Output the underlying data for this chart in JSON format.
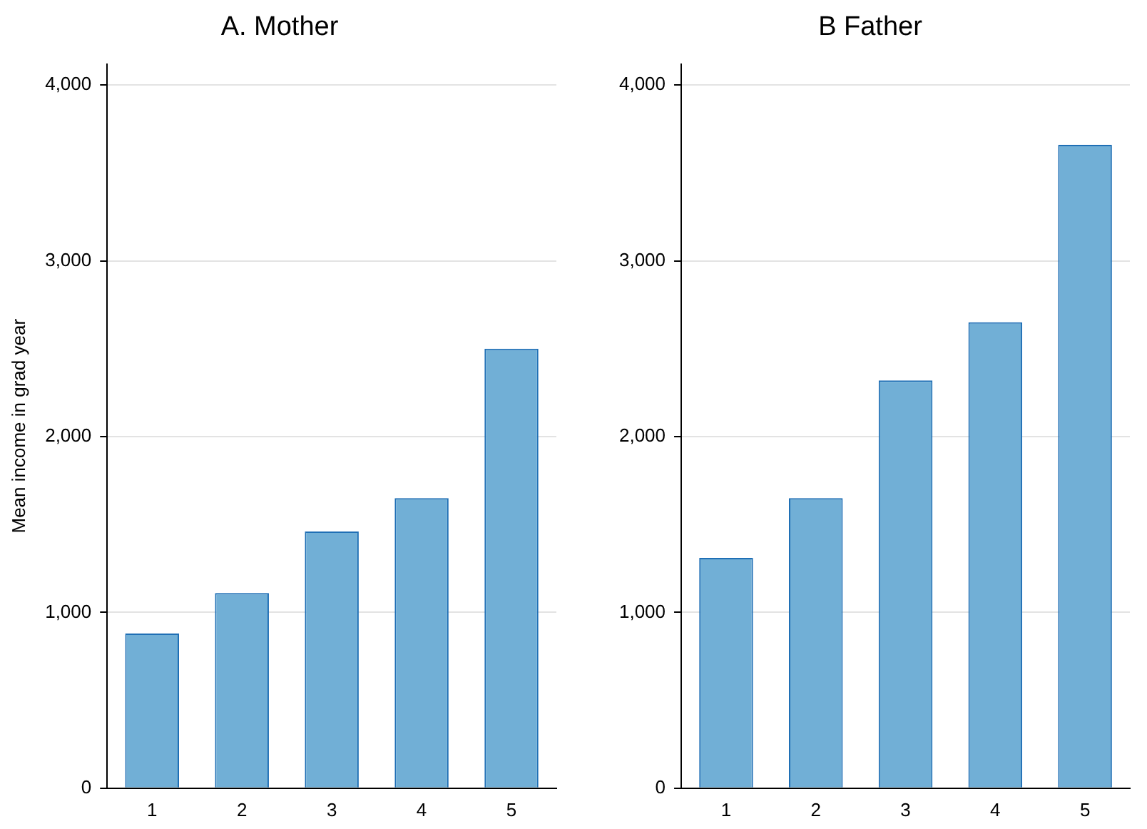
{
  "chart_data": [
    {
      "type": "bar",
      "title": "A. Mother",
      "ylabel": "Mean income in grad year",
      "categories": [
        "1",
        "2",
        "3",
        "4",
        "5"
      ],
      "values": [
        880,
        1110,
        1460,
        1650,
        2500
      ],
      "color": "#71afd6",
      "ylim": [
        0,
        4120
      ],
      "yticks": [
        {
          "value": 0,
          "label": "0"
        },
        {
          "value": 1000,
          "label": "1,000"
        },
        {
          "value": 2000,
          "label": "2,000"
        },
        {
          "value": 3000,
          "label": "3,000"
        },
        {
          "value": 4000,
          "label": "4,000"
        }
      ],
      "grid": "y",
      "legend": false
    },
    {
      "type": "bar",
      "title": "B Father",
      "categories": [
        "1",
        "2",
        "3",
        "4",
        "5"
      ],
      "values": [
        1310,
        1650,
        2320,
        2650,
        3660
      ],
      "color": "#71afd6",
      "ylim": [
        0,
        4120
      ],
      "yticks": [
        {
          "value": 0,
          "label": "0"
        },
        {
          "value": 1000,
          "label": "1,000"
        },
        {
          "value": 2000,
          "label": "2,000"
        },
        {
          "value": 3000,
          "label": "3,000"
        },
        {
          "value": 4000,
          "label": "4,000"
        }
      ],
      "grid": "y",
      "legend": false
    }
  ]
}
